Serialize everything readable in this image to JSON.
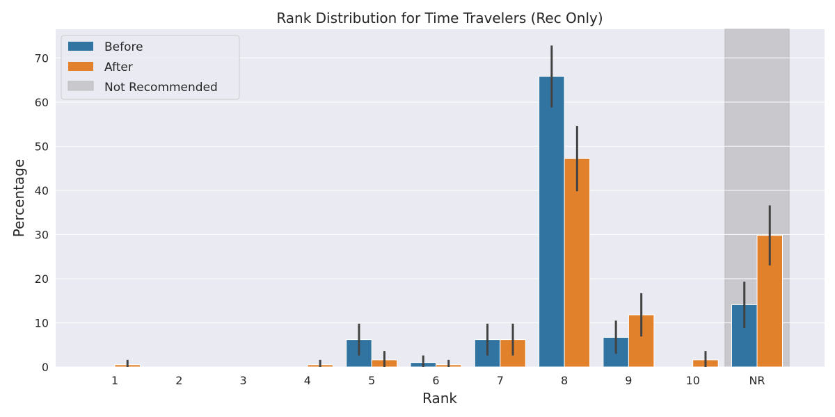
{
  "chart_data": {
    "type": "bar",
    "title": "Rank Distribution for Time Travelers (Rec Only)",
    "xlabel": "Rank",
    "ylabel": "Percentage",
    "categories": [
      "1",
      "2",
      "3",
      "4",
      "5",
      "6",
      "7",
      "8",
      "9",
      "10",
      "NR"
    ],
    "ylim": [
      0,
      76.5
    ],
    "yticks": [
      0,
      10,
      20,
      30,
      40,
      50,
      60,
      70
    ],
    "grid": true,
    "legend_position": "top-left",
    "highlight": {
      "category": "NR",
      "label": "Not Recommended",
      "color": "#c9c8cd"
    },
    "series": [
      {
        "name": "Before",
        "color": "#3274a1",
        "values": [
          0,
          0,
          0,
          0,
          6.2,
          1.0,
          6.2,
          65.8,
          6.7,
          0,
          14.1
        ],
        "error_low": [
          null,
          null,
          null,
          null,
          2.6,
          0,
          2.6,
          58.8,
          3.0,
          null,
          8.8
        ],
        "error_high": [
          null,
          null,
          null,
          null,
          9.8,
          2.6,
          9.8,
          72.8,
          10.5,
          null,
          19.3
        ]
      },
      {
        "name": "After",
        "color": "#e1812c",
        "values": [
          0.5,
          0,
          0,
          0.5,
          1.6,
          0.5,
          6.2,
          47.2,
          11.8,
          1.6,
          29.8
        ],
        "error_low": [
          0,
          null,
          null,
          0,
          0,
          0,
          2.6,
          39.8,
          6.9,
          0,
          23.0
        ],
        "error_high": [
          1.6,
          null,
          null,
          1.6,
          3.6,
          1.6,
          9.8,
          54.6,
          16.7,
          3.6,
          36.6
        ]
      }
    ]
  }
}
